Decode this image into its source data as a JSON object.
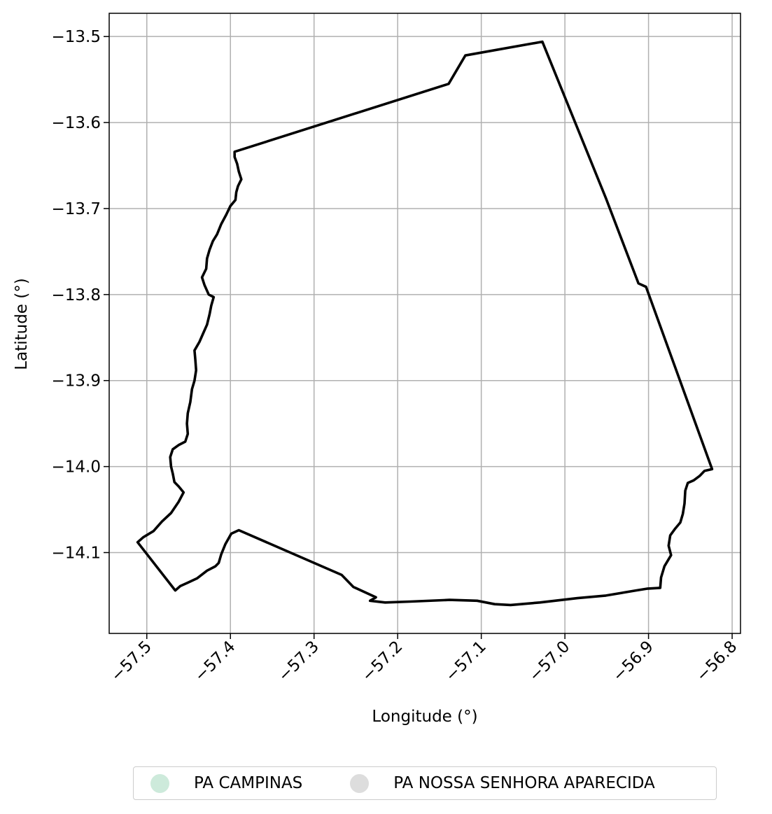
{
  "chart_data": {
    "type": "map",
    "xlabel": "Longitude (°)",
    "ylabel": "Latitude (°)",
    "xlim": [
      -57.545,
      -56.79
    ],
    "ylim": [
      -14.194,
      -13.473
    ],
    "xticks": [
      -57.5,
      -57.4,
      -57.3,
      -57.2,
      -57.1,
      -57.0,
      -56.9,
      -56.8
    ],
    "xtick_labels": [
      "−57.5",
      "−57.4",
      "−57.3",
      "−57.2",
      "−57.1",
      "−57.0",
      "−56.9",
      "−56.8"
    ],
    "yticks": [
      -13.5,
      -13.6,
      -13.7,
      -13.8,
      -13.9,
      -14.0,
      -14.1
    ],
    "ytick_labels": [
      "−13.5",
      "−13.6",
      "−13.7",
      "−13.8",
      "−13.9",
      "−14.0",
      "−14.1"
    ],
    "grid": true,
    "legend_position": "bottom-center",
    "legend": [
      {
        "label": "PA CAMPINAS",
        "color": "#cdeadb"
      },
      {
        "label": "PA NOSSA SENHORA APARECIDA",
        "color": "#dddddd"
      }
    ],
    "boundary_color": "#000000",
    "boundary": [
      [
        -57.395,
        -13.634
      ],
      [
        -57.139,
        -13.555
      ],
      [
        -57.119,
        -13.522
      ],
      [
        -57.027,
        -13.506
      ],
      [
        -56.951,
        -13.688
      ],
      [
        -56.912,
        -13.787
      ],
      [
        -56.903,
        -13.791
      ],
      [
        -56.824,
        -14.003
      ],
      [
        -56.833,
        -14.005
      ],
      [
        -56.839,
        -14.011
      ],
      [
        -56.846,
        -14.016
      ],
      [
        -56.853,
        -14.019
      ],
      [
        -56.856,
        -14.028
      ],
      [
        -56.857,
        -14.043
      ],
      [
        -56.859,
        -14.055
      ],
      [
        -56.862,
        -14.065
      ],
      [
        -56.868,
        -14.072
      ],
      [
        -56.874,
        -14.08
      ],
      [
        -56.876,
        -14.092
      ],
      [
        -56.873,
        -14.103
      ],
      [
        -56.881,
        -14.116
      ],
      [
        -56.885,
        -14.129
      ],
      [
        -56.886,
        -14.141
      ],
      [
        -56.902,
        -14.142
      ],
      [
        -56.915,
        -14.144
      ],
      [
        -56.951,
        -14.15
      ],
      [
        -56.985,
        -14.153
      ],
      [
        -57.03,
        -14.158
      ],
      [
        -57.065,
        -14.161
      ],
      [
        -57.084,
        -14.16
      ],
      [
        -57.105,
        -14.156
      ],
      [
        -57.138,
        -14.155
      ],
      [
        -57.185,
        -14.157
      ],
      [
        -57.215,
        -14.158
      ],
      [
        -57.233,
        -14.156
      ],
      [
        -57.226,
        -14.152
      ],
      [
        -57.253,
        -14.14
      ],
      [
        -57.267,
        -14.126
      ],
      [
        -57.39,
        -14.074
      ],
      [
        -57.399,
        -14.078
      ],
      [
        -57.406,
        -14.09
      ],
      [
        -57.411,
        -14.102
      ],
      [
        -57.414,
        -14.112
      ],
      [
        -57.418,
        -14.116
      ],
      [
        -57.428,
        -14.121
      ],
      [
        -57.44,
        -14.13
      ],
      [
        -57.451,
        -14.135
      ],
      [
        -57.46,
        -14.139
      ],
      [
        -57.466,
        -14.144
      ],
      [
        -57.511,
        -14.088
      ],
      [
        -57.504,
        -14.082
      ],
      [
        -57.492,
        -14.075
      ],
      [
        -57.482,
        -14.064
      ],
      [
        -57.471,
        -14.054
      ],
      [
        -57.462,
        -14.041
      ],
      [
        -57.456,
        -14.03
      ],
      [
        -57.462,
        -14.023
      ],
      [
        -57.467,
        -14.018
      ],
      [
        -57.469,
        -14.008
      ],
      [
        -57.471,
        -14.0
      ],
      [
        -57.472,
        -13.989
      ],
      [
        -57.469,
        -13.98
      ],
      [
        -57.462,
        -13.975
      ],
      [
        -57.454,
        -13.971
      ],
      [
        -57.451,
        -13.962
      ],
      [
        -57.452,
        -13.95
      ],
      [
        -57.451,
        -13.938
      ],
      [
        -57.448,
        -13.925
      ],
      [
        -57.446,
        -13.91
      ],
      [
        -57.443,
        -13.9
      ],
      [
        -57.441,
        -13.888
      ],
      [
        -57.442,
        -13.876
      ],
      [
        -57.443,
        -13.865
      ],
      [
        -57.437,
        -13.855
      ],
      [
        -57.433,
        -13.846
      ],
      [
        -57.428,
        -13.835
      ],
      [
        -57.425,
        -13.823
      ],
      [
        -57.423,
        -13.813
      ],
      [
        -57.42,
        -13.803
      ],
      [
        -57.426,
        -13.8
      ],
      [
        -57.431,
        -13.789
      ],
      [
        -57.434,
        -13.78
      ],
      [
        -57.429,
        -13.77
      ],
      [
        -57.428,
        -13.758
      ],
      [
        -57.425,
        -13.748
      ],
      [
        -57.421,
        -13.738
      ],
      [
        -57.416,
        -13.73
      ],
      [
        -57.411,
        -13.718
      ],
      [
        -57.405,
        -13.707
      ],
      [
        -57.4,
        -13.697
      ],
      [
        -57.394,
        -13.69
      ],
      [
        -57.393,
        -13.681
      ],
      [
        -57.391,
        -13.674
      ],
      [
        -57.387,
        -13.666
      ],
      [
        -57.39,
        -13.657
      ],
      [
        -57.392,
        -13.648
      ],
      [
        -57.395,
        -13.64
      ],
      [
        -57.395,
        -13.634
      ]
    ]
  }
}
